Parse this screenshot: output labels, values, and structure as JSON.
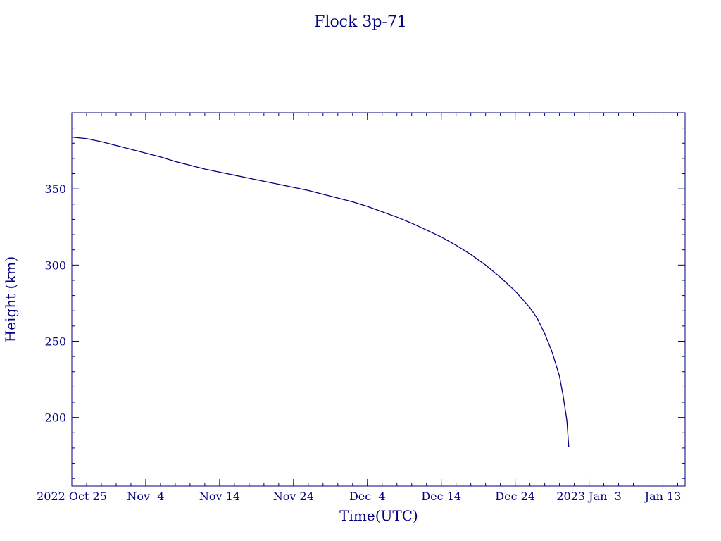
{
  "chart_data": {
    "type": "line",
    "title": "Flock 3p-71",
    "xlabel": "Time(UTC)",
    "ylabel": "Height (km)",
    "x_unit": "date (UTC)",
    "xlim": [
      "2022-10-25",
      "2023-01-16"
    ],
    "ylim": [
      155,
      400
    ],
    "grid": false,
    "x_ticks": [
      {
        "date": "2022-10-25",
        "label": "2022 Oct 25"
      },
      {
        "date": "2022-11-04",
        "label": "Nov  4"
      },
      {
        "date": "2022-11-14",
        "label": "Nov 14"
      },
      {
        "date": "2022-11-24",
        "label": "Nov 24"
      },
      {
        "date": "2022-12-04",
        "label": "Dec  4"
      },
      {
        "date": "2022-12-14",
        "label": "Dec 14"
      },
      {
        "date": "2022-12-24",
        "label": "Dec 24"
      },
      {
        "date": "2023-01-03",
        "label": "2023 Jan  3"
      },
      {
        "date": "2023-01-13",
        "label": "Jan 13"
      }
    ],
    "y_ticks": [
      200,
      250,
      300,
      350
    ],
    "y_tick_labels": [
      "200",
      "250",
      "300",
      "350"
    ],
    "series": [
      {
        "color": "#000080",
        "points": [
          [
            "2022-10-25",
            384
          ],
          [
            "2022-10-27",
            383
          ],
          [
            "2022-10-29",
            381
          ],
          [
            "2022-10-31",
            378.5
          ],
          [
            "2022-11-02",
            376
          ],
          [
            "2022-11-04",
            373.5
          ],
          [
            "2022-11-06",
            371
          ],
          [
            "2022-11-08",
            368
          ],
          [
            "2022-11-10",
            365.5
          ],
          [
            "2022-11-12",
            363
          ],
          [
            "2022-11-14",
            361
          ],
          [
            "2022-11-16",
            359
          ],
          [
            "2022-11-18",
            357
          ],
          [
            "2022-11-20",
            355
          ],
          [
            "2022-11-22",
            353
          ],
          [
            "2022-11-24",
            351
          ],
          [
            "2022-11-26",
            349
          ],
          [
            "2022-11-28",
            346.5
          ],
          [
            "2022-11-30",
            344
          ],
          [
            "2022-12-02",
            341.5
          ],
          [
            "2022-12-04",
            338.5
          ],
          [
            "2022-12-06",
            335
          ],
          [
            "2022-12-08",
            331.5
          ],
          [
            "2022-12-10",
            327.5
          ],
          [
            "2022-12-12",
            323
          ],
          [
            "2022-12-14",
            318.5
          ],
          [
            "2022-12-16",
            313
          ],
          [
            "2022-12-18",
            307
          ],
          [
            "2022-12-20",
            300
          ],
          [
            "2022-12-22",
            292
          ],
          [
            "2022-12-24",
            283
          ],
          [
            "2022-12-26",
            272
          ],
          [
            "2022-12-27",
            265
          ],
          [
            "2022-12-28",
            255
          ],
          [
            "2022-12-29",
            243
          ],
          [
            "2022-12-30",
            227
          ],
          [
            "2022-12-30T12:00",
            214
          ],
          [
            "2022-12-31",
            198
          ],
          [
            "2022-12-31T06:00",
            181
          ]
        ]
      }
    ]
  }
}
